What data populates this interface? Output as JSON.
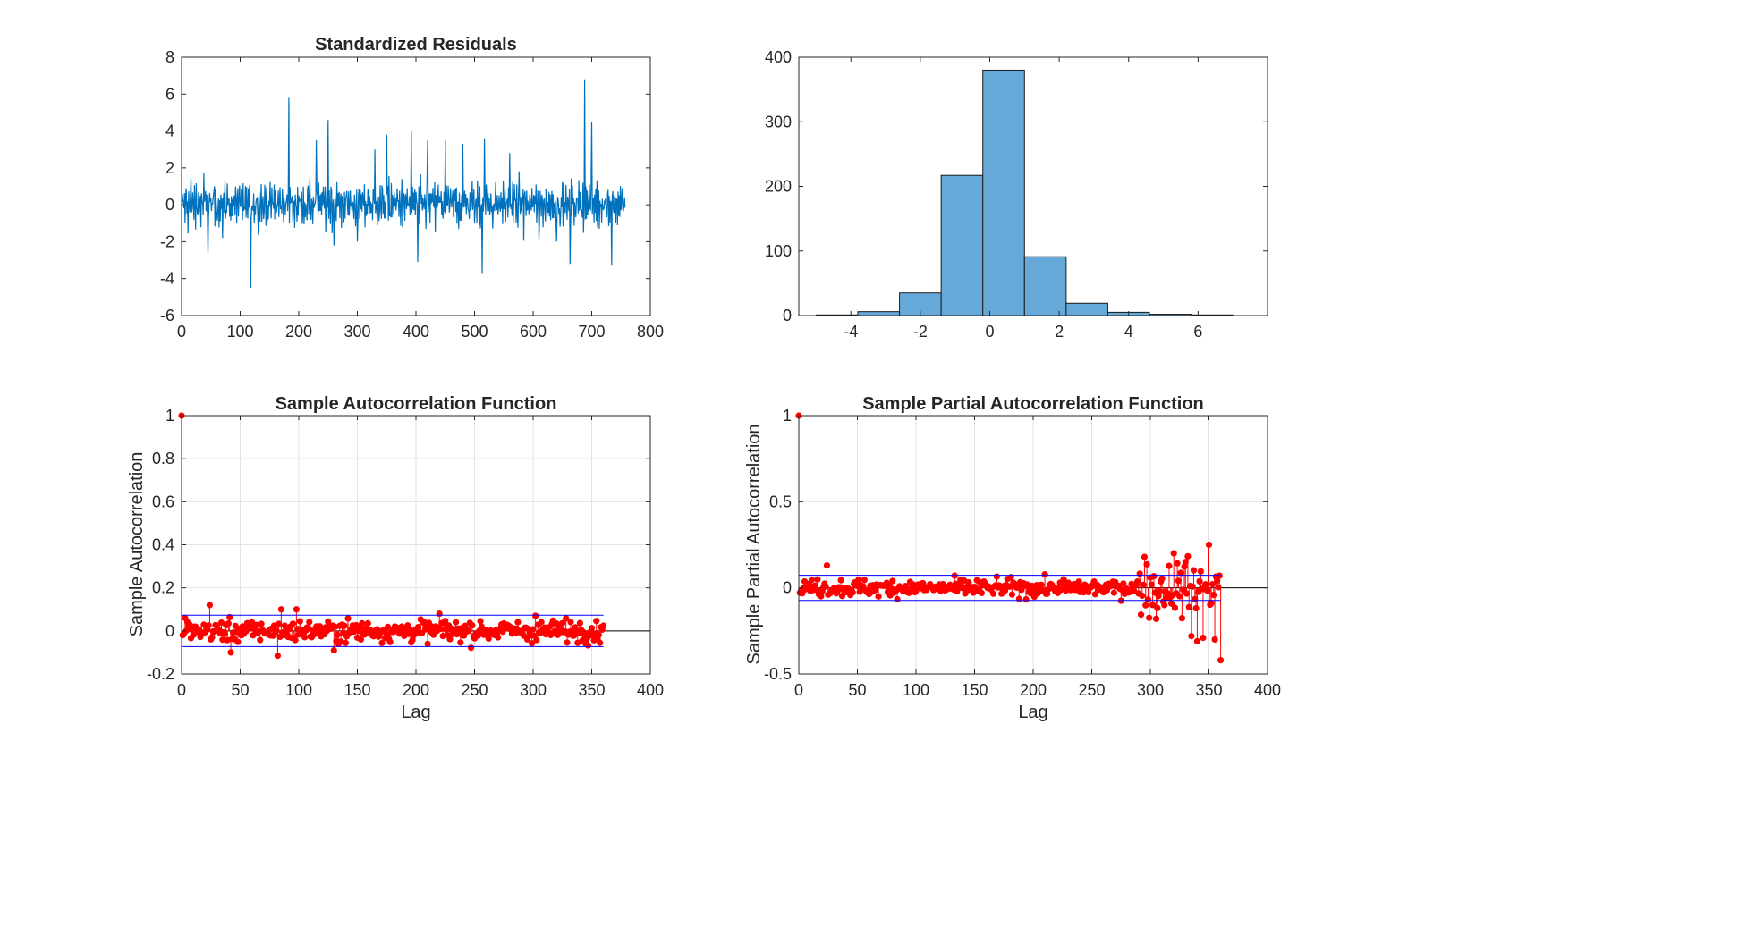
{
  "figure": {
    "background": "#ffffff"
  },
  "chart_data": [
    {
      "type": "line",
      "title": "Standardized Residuals",
      "xlabel": "",
      "ylabel": "",
      "xlim": [
        0,
        800
      ],
      "ylim": [
        -6,
        8
      ],
      "xticks": [
        0,
        100,
        200,
        300,
        400,
        500,
        600,
        700,
        800
      ],
      "yticks": [
        -6,
        -4,
        -2,
        0,
        2,
        4,
        6,
        8
      ],
      "grid": false,
      "color": "#0072BD",
      "n_points": 757,
      "spikes": [
        [
          183,
          5.8
        ],
        [
          118,
          -4.5
        ],
        [
          250,
          4.6
        ],
        [
          688,
          6.8
        ],
        [
          392,
          4.0
        ],
        [
          420,
          3.5
        ],
        [
          450,
          3.5
        ],
        [
          480,
          3.3
        ],
        [
          517,
          3.6
        ],
        [
          560,
          2.8
        ],
        [
          700,
          4.5
        ],
        [
          403,
          -3.1
        ],
        [
          513,
          -3.7
        ],
        [
          663,
          -3.2
        ],
        [
          734,
          -3.3
        ],
        [
          45,
          -2.6
        ],
        [
          70,
          -1.8
        ],
        [
          260,
          -2.2
        ],
        [
          300,
          -2.0
        ],
        [
          610,
          -1.9
        ],
        [
          640,
          -2.0
        ],
        [
          230,
          3.5
        ],
        [
          330,
          3.0
        ],
        [
          350,
          3.8
        ]
      ],
      "series": [
        {
          "name": "",
          "values": [
            0.1,
            -0.1,
            0.3,
            -0.5,
            0.6,
            -0.8,
            0.2,
            0.9,
            -0.4,
            0.5,
            -1.0,
            0.7,
            0.2,
            -0.6,
            0.4,
            1.1,
            -0.9,
            0.0,
            0.8,
            -0.3,
            -0.7,
            0.6,
            0.3,
            -1.2,
            1.0,
            -0.2,
            0.4,
            -0.5,
            0.9,
            -0.8,
            0.2,
            0.6,
            -1.0,
            0.7,
            -0.3,
            0.1,
            -0.6,
            1.3,
            -0.4,
            0.5
          ]
        }
      ],
      "series_note": ""
    },
    {
      "type": "bar",
      "title": "",
      "xlabel": "",
      "ylabel": "",
      "xlim": [
        -5.5,
        8
      ],
      "ylim": [
        0,
        400
      ],
      "xticks": [
        -4,
        -2,
        0,
        2,
        4,
        6
      ],
      "yticks": [
        0,
        100,
        200,
        300,
        400
      ],
      "grid": false,
      "color": "#66A8D8",
      "edgecolor": "#1a1a1a",
      "bin_edges": [
        -5.0,
        -3.8,
        -2.6,
        -1.4,
        -0.2,
        1.0,
        2.2,
        3.4,
        4.6,
        5.8,
        7.0
      ],
      "values": [
        1,
        6,
        35,
        217,
        380,
        91,
        19,
        5,
        2,
        1
      ]
    },
    {
      "type": "stem",
      "title": "Sample Autocorrelation Function",
      "xlabel": "Lag",
      "ylabel": "Sample Autocorrelation",
      "xlim": [
        0,
        400
      ],
      "ylim": [
        -0.2,
        1
      ],
      "xticks": [
        0,
        50,
        100,
        150,
        200,
        250,
        300,
        350,
        400
      ],
      "yticks": [
        -0.2,
        0,
        0.2,
        0.4,
        0.6,
        0.8,
        1
      ],
      "ytick_labels": [
        "-0.2",
        "0",
        "0.2",
        "0.4",
        "0.6",
        "0.8",
        "1"
      ],
      "grid": true,
      "max_lag": 360,
      "bounds": [
        0.0729,
        -0.0729
      ],
      "stem_color": "#FF0000",
      "bound_color": "#0000FF",
      "key_values": [
        [
          0,
          1.0
        ],
        [
          3,
          0.06
        ],
        [
          24,
          0.12
        ],
        [
          42,
          -0.1
        ],
        [
          82,
          -0.115
        ],
        [
          85,
          0.1
        ],
        [
          98,
          0.1
        ],
        [
          130,
          -0.09
        ],
        [
          220,
          0.08
        ],
        [
          302,
          0.07
        ]
      ]
    },
    {
      "type": "stem",
      "title": "Sample Partial Autocorrelation Function",
      "xlabel": "Lag",
      "ylabel": "Sample Partial Autocorrelation",
      "xlim": [
        0,
        400
      ],
      "ylim": [
        -0.5,
        1
      ],
      "xticks": [
        0,
        50,
        100,
        150,
        200,
        250,
        300,
        350,
        400
      ],
      "yticks": [
        -0.5,
        0,
        0.5,
        1
      ],
      "ytick_labels": [
        "-0.5",
        "0",
        "0.5",
        "1"
      ],
      "grid": true,
      "max_lag": 360,
      "bounds": [
        0.0729,
        -0.0729
      ],
      "stem_color": "#FF0000",
      "bound_color": "#0000FF",
      "key_values": [
        [
          0,
          1.0
        ],
        [
          24,
          0.13
        ],
        [
          295,
          0.18
        ],
        [
          305,
          -0.18
        ],
        [
          320,
          0.2
        ],
        [
          330,
          0.15
        ],
        [
          335,
          -0.28
        ],
        [
          340,
          -0.31
        ],
        [
          345,
          -0.29
        ],
        [
          350,
          0.25
        ],
        [
          355,
          -0.3
        ],
        [
          360,
          -0.42
        ]
      ]
    }
  ]
}
